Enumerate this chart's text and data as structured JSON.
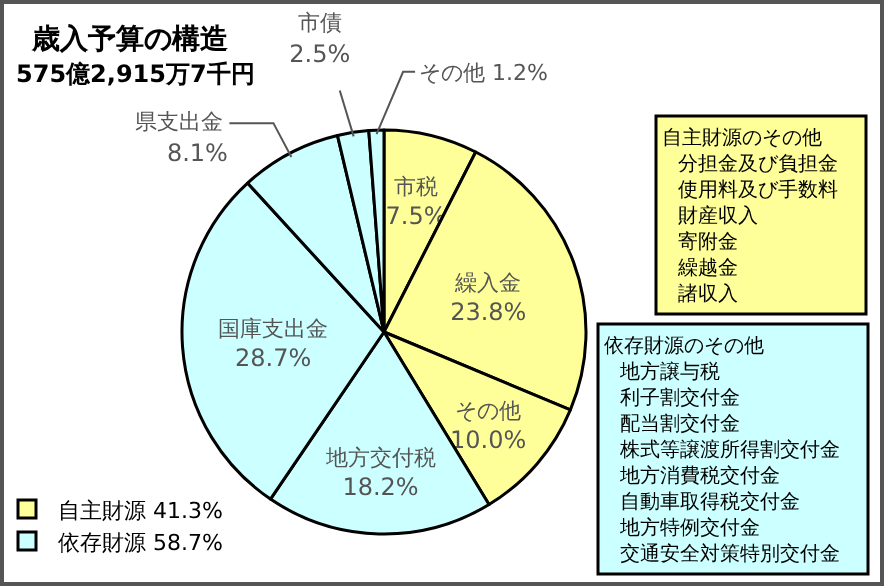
{
  "chart_data": {
    "type": "pie",
    "title": "歳入予算の構造",
    "subtitle": "575億2,915万7千円",
    "categories": [
      "市税",
      "繰入金",
      "その他",
      "地方交付税",
      "国庫支出金",
      "県支出金",
      "市債",
      "その他"
    ],
    "values": [
      7.5,
      23.8,
      10.0,
      18.2,
      28.7,
      8.1,
      2.5,
      1.2
    ],
    "colors": [
      "#ffff99",
      "#ffff99",
      "#ffff99",
      "#ccffff",
      "#ccffff",
      "#ccffff",
      "#ccffff",
      "#ccffff"
    ],
    "value_labels": [
      "7.5%",
      "23.8%",
      "10.0%",
      "18.2%",
      "28.7%",
      "8.1%",
      "2.5%",
      "1.2%"
    ],
    "annotations": [
      "自主財源 41.3%",
      "依存財源 58.7%",
      "自主財源のその他",
      "分担金及び負担金",
      "使用料及び手数料",
      "財産収入",
      "寄附金",
      "繰越金",
      "諸収入",
      "依存財源のその他",
      "地方譲与税",
      "利子割交付金",
      "配当割交付金",
      "株式等譲渡所得割交付金",
      "地方消費税交付金",
      "自動車取得税交付金",
      "地方特例交付金",
      "交通安全対策特別交付金"
    ]
  }
}
